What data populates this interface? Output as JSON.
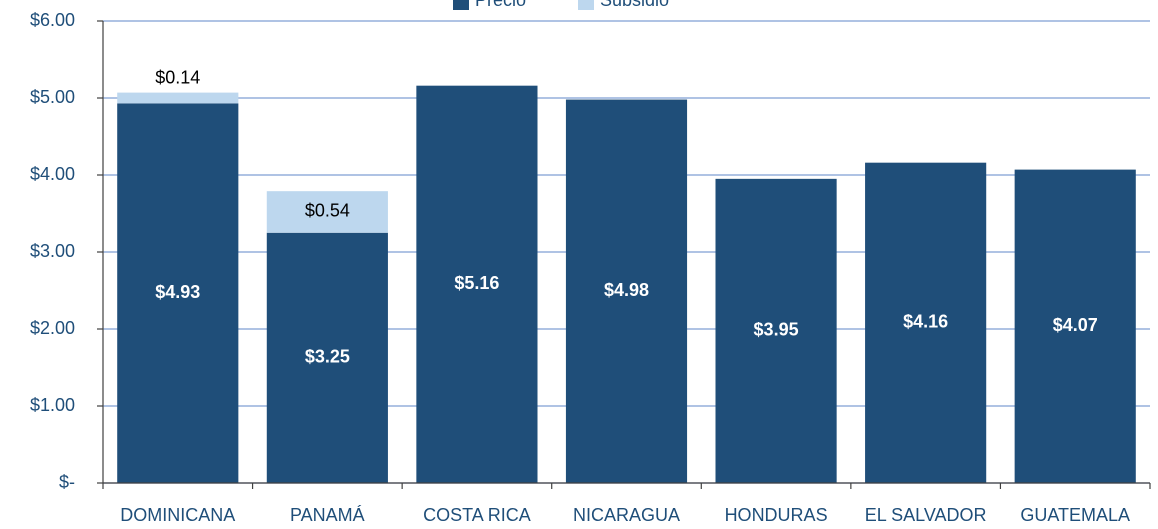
{
  "chart_data": {
    "type": "stacked_bar",
    "categories": [
      "DOMINICANA",
      "PANAMÁ",
      "COSTA RICA",
      "NICARAGUA",
      "HONDURAS",
      "EL SALVADOR",
      "GUATEMALA"
    ],
    "series": [
      {
        "name": "Precio",
        "color": "#1f4e79",
        "values": [
          4.93,
          3.25,
          5.16,
          4.98,
          3.95,
          4.16,
          4.07
        ],
        "value_labels": [
          "$4.93",
          "$3.25",
          "$5.16",
          "$4.98",
          "$3.95",
          "$4.16",
          "$4.07"
        ]
      },
      {
        "name": "Subsidio",
        "color": "#bdd7ee",
        "values": [
          0.14,
          0.54,
          null,
          null,
          null,
          null,
          null
        ],
        "value_labels": [
          "$0.14",
          "$0.54",
          null,
          null,
          null,
          null,
          null
        ]
      }
    ],
    "ylim": [
      0,
      6
    ],
    "yticks": [
      {
        "value": 0,
        "label": "$-"
      },
      {
        "value": 1,
        "label": "$1.00"
      },
      {
        "value": 2,
        "label": "$2.00"
      },
      {
        "value": 3,
        "label": "$3.00"
      },
      {
        "value": 4,
        "label": "$4.00"
      },
      {
        "value": 5,
        "label": "$5.00"
      },
      {
        "value": 6,
        "label": "$6.00"
      }
    ],
    "grid": true,
    "legend": "top"
  }
}
